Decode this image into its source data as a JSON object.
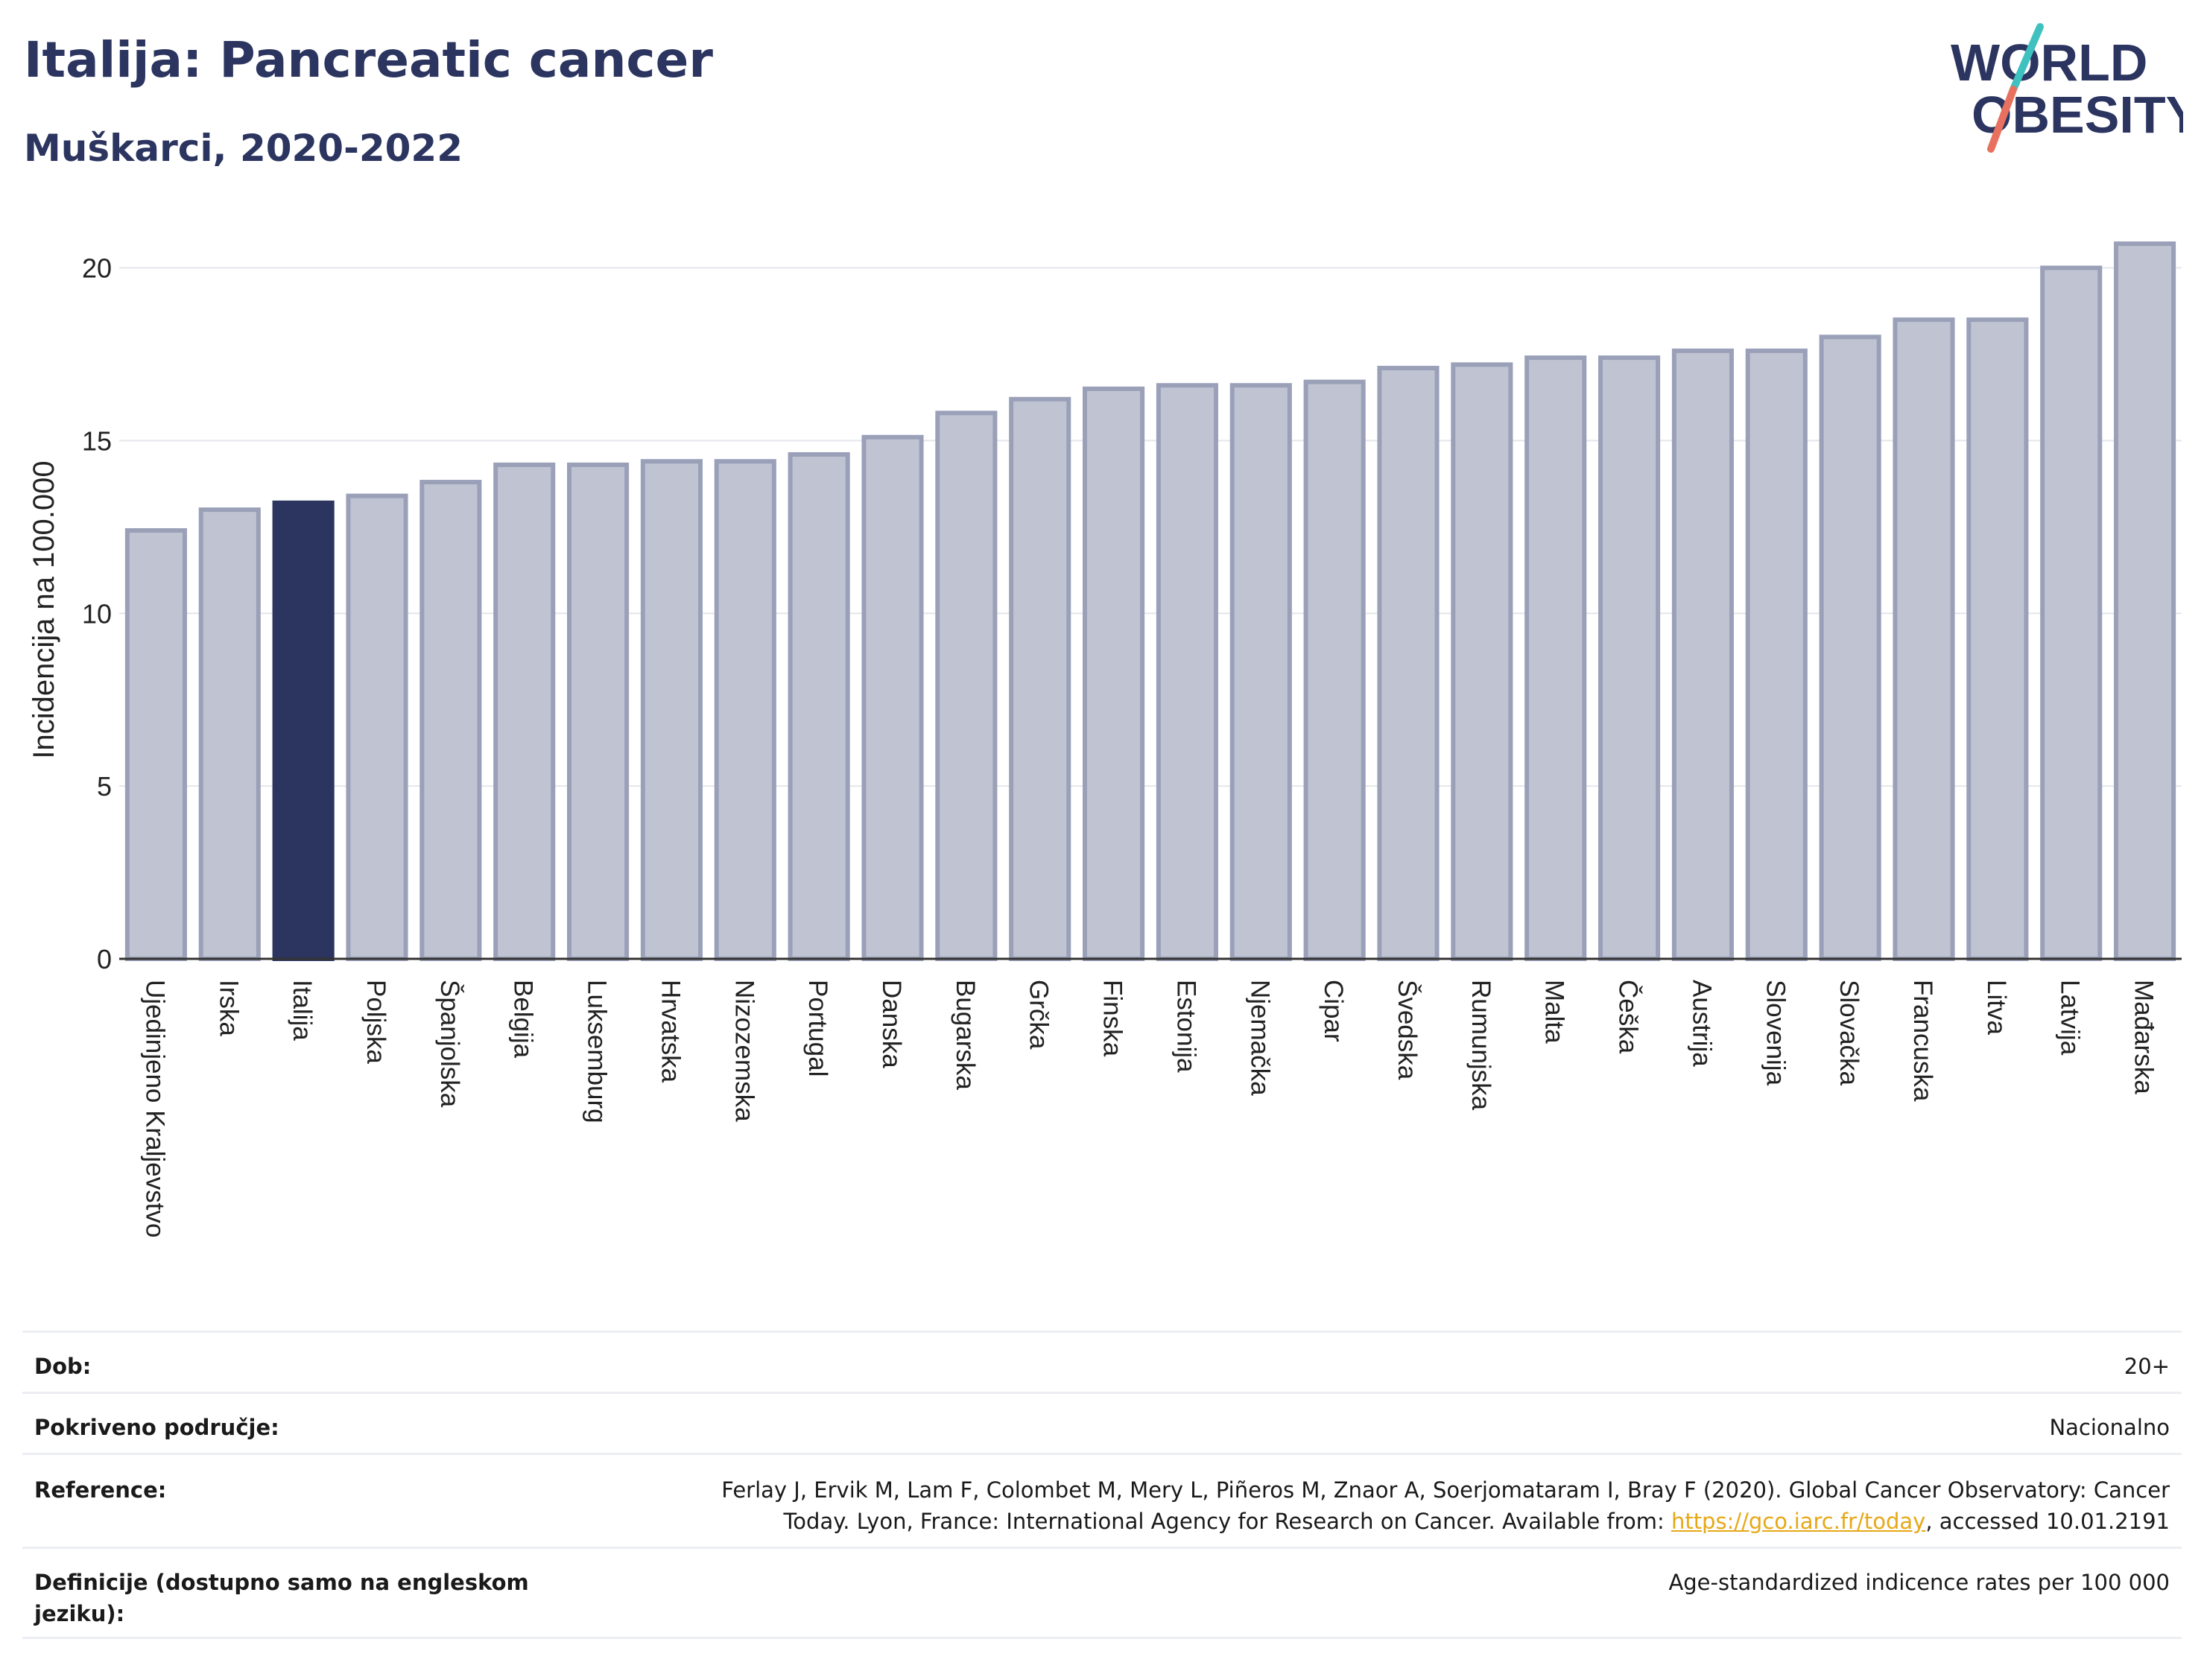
{
  "title": "Italija: Pancreatic cancer",
  "subtitle": "Muškarci, 2020-2022",
  "logo": {
    "line1": "WORLD",
    "line2": "OBESITY"
  },
  "colors": {
    "bar": "#c0c4d2",
    "bar_edge": "#9aa0b8",
    "highlight": "#2b3560",
    "title": "#2b3560"
  },
  "chart_data": {
    "type": "bar",
    "ylabel": "Incidencija na 100.000",
    "ylim": [
      0,
      21.5
    ],
    "yticks": [
      0,
      5,
      10,
      15,
      20
    ],
    "grid": true,
    "highlight": "Italija",
    "categories": [
      "Ujedinjeno Kraljevstvo",
      "Irska",
      "Italija",
      "Poljska",
      "Španjolska",
      "Belgija",
      "Luksemburg",
      "Hrvatska",
      "Nizozemska",
      "Portugal",
      "Danska",
      "Bugarska",
      "Grčka",
      "Finska",
      "Estonija",
      "Njemačka",
      "Cipar",
      "Švedska",
      "Rumunjska",
      "Malta",
      "Češka",
      "Austrija",
      "Slovenija",
      "Slovačka",
      "Francuska",
      "Litva",
      "Latvija",
      "Mađarska"
    ],
    "values": [
      12.4,
      13.0,
      13.2,
      13.4,
      13.8,
      14.3,
      14.3,
      14.4,
      14.4,
      14.6,
      15.1,
      15.8,
      16.2,
      16.5,
      16.6,
      16.6,
      16.7,
      17.1,
      17.2,
      17.4,
      17.4,
      17.6,
      17.6,
      18.0,
      18.5,
      18.5,
      20.0,
      20.7
    ]
  },
  "info": {
    "age_label": "Dob:",
    "age_value": "20+",
    "area_label": "Pokriveno područje:",
    "area_value": "Nacionalno",
    "ref_label": "Reference:",
    "ref_line1": "Ferlay J, Ervik M, Lam F, Colombet M, Mery L, Piñeros M, Znaor A, Soerjomataram I, Bray F (2020). Global Cancer Observatory: Cancer",
    "ref_line2_pre": "Today. Lyon, France: International Agency for Research on Cancer. Available from: ",
    "ref_link": "https://gco.iarc.fr/today",
    "ref_line2_post": ", accessed 10.01.2191",
    "def_label": "Definicije (dostupno samo na engleskom jeziku):",
    "def_value": "Age-standardized indicence rates per 100 000"
  }
}
